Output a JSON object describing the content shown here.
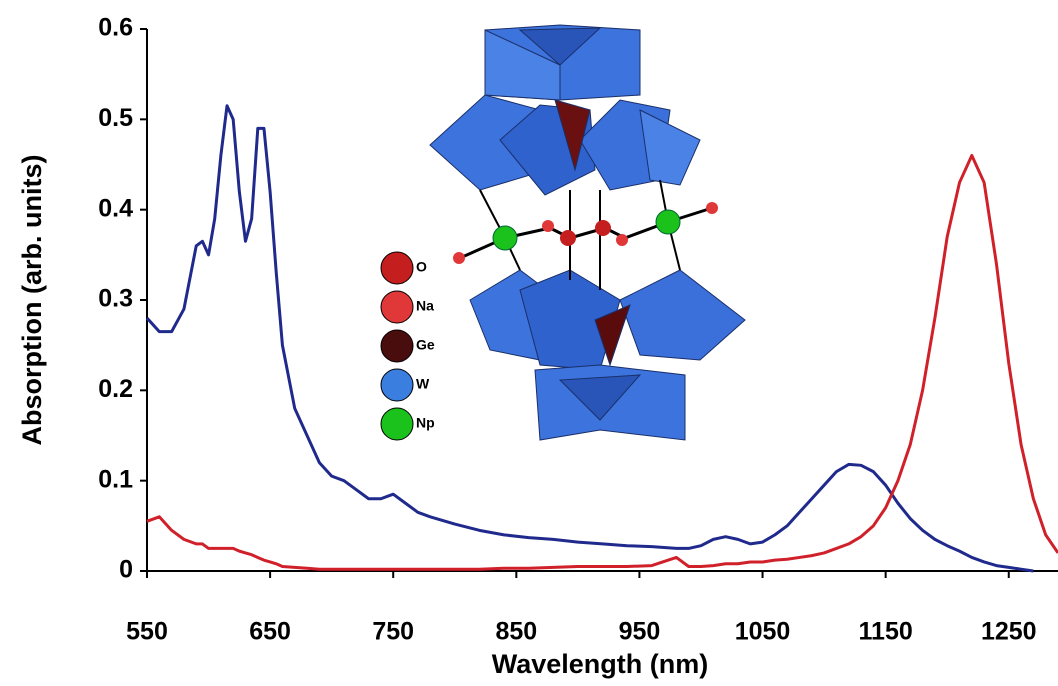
{
  "chart_data": {
    "type": "line",
    "x_label": "Wavelength (nm)",
    "y_label": "Absorption (arb. units)",
    "x": [
      550,
      560,
      570,
      580,
      590,
      595,
      600,
      605,
      610,
      615,
      620,
      625,
      630,
      635,
      640,
      645,
      650,
      655,
      660,
      670,
      680,
      690,
      700,
      710,
      720,
      730,
      740,
      750,
      760,
      770,
      780,
      800,
      820,
      840,
      860,
      880,
      900,
      920,
      940,
      960,
      980,
      990,
      1000,
      1010,
      1020,
      1030,
      1040,
      1050,
      1060,
      1070,
      1080,
      1090,
      1100,
      1110,
      1120,
      1130,
      1140,
      1150,
      1160,
      1170,
      1180,
      1190,
      1200,
      1210,
      1220,
      1230,
      1240,
      1250,
      1260,
      1270,
      1280,
      1290
    ],
    "series": [
      {
        "color": "#1f2a8c",
        "values": [
          0.28,
          0.265,
          0.265,
          0.29,
          0.36,
          0.365,
          0.35,
          0.39,
          0.46,
          0.515,
          0.5,
          0.42,
          0.365,
          0.39,
          0.49,
          0.49,
          0.42,
          0.33,
          0.25,
          0.18,
          0.15,
          0.12,
          0.105,
          0.1,
          0.09,
          0.08,
          0.08,
          0.085,
          0.075,
          0.065,
          0.06,
          0.052,
          0.045,
          0.04,
          0.037,
          0.035,
          0.032,
          0.03,
          0.028,
          0.027,
          0.025,
          0.025,
          0.028,
          0.035,
          0.038,
          0.035,
          0.03,
          0.032,
          0.04,
          0.05,
          0.065,
          0.08,
          0.095,
          0.11,
          0.118,
          0.117,
          0.11,
          0.095,
          0.075,
          0.058,
          0.045,
          0.035,
          0.028,
          0.022,
          0.015,
          0.01,
          0.006,
          0.004,
          0.002,
          0,
          null,
          null
        ]
      },
      {
        "color": "#d0202a",
        "values": [
          0.055,
          0.06,
          0.045,
          0.035,
          0.03,
          0.03,
          0.025,
          0.025,
          0.025,
          0.025,
          0.025,
          0.022,
          0.02,
          0.018,
          0.015,
          0.012,
          0.01,
          0.008,
          0.005,
          0.004,
          0.003,
          0.002,
          0.002,
          0.002,
          0.002,
          0.002,
          0.002,
          0.002,
          0.002,
          0.002,
          0.002,
          0.002,
          0.002,
          0.003,
          0.003,
          0.004,
          0.005,
          0.005,
          0.005,
          0.006,
          0.015,
          0.005,
          0.005,
          0.006,
          0.008,
          0.008,
          0.01,
          0.01,
          0.012,
          0.013,
          0.015,
          0.017,
          0.02,
          0.025,
          0.03,
          0.038,
          0.05,
          0.07,
          0.1,
          0.14,
          0.2,
          0.28,
          0.37,
          0.43,
          0.46,
          0.43,
          0.34,
          0.23,
          0.14,
          0.08,
          0.04,
          0.02
        ]
      }
    ],
    "xlim": [
      550,
      1290
    ],
    "ylim": [
      0,
      0.6
    ],
    "xticks": [
      550,
      650,
      750,
      850,
      950,
      1050,
      1150,
      1250
    ],
    "yticks": [
      0,
      0.1,
      0.2,
      0.3,
      0.4,
      0.5,
      0.6
    ],
    "grid": false,
    "inset_legend": {
      "labels": [
        "O",
        "Na",
        "Ge",
        "W",
        "Np"
      ],
      "colors": [
        "#c41e1e",
        "#e03838",
        "#4a0d0d",
        "#3a7ee0",
        "#1cc21c"
      ]
    }
  }
}
